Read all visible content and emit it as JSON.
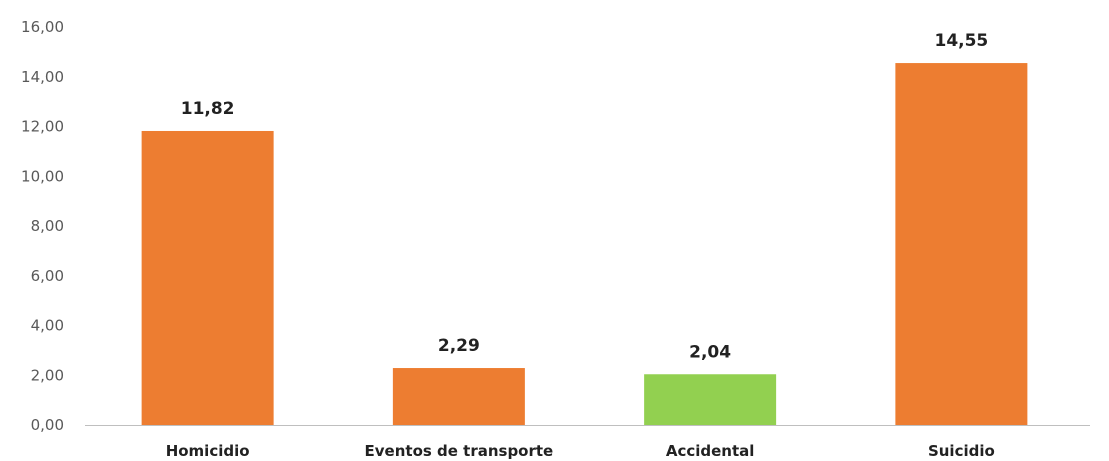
{
  "chart_data": {
    "type": "bar",
    "categories": [
      "Homicidio",
      "Eventos de transporte",
      "Accidental",
      "Suicidio"
    ],
    "values": [
      11.82,
      2.29,
      2.04,
      14.55
    ],
    "value_labels": [
      "11,82",
      "2,29",
      "2,04",
      "14,55"
    ],
    "bar_colors": [
      "#ed7d31",
      "#ed7d31",
      "#92d050",
      "#ed7d31"
    ],
    "ylim": [
      0,
      16
    ],
    "y_ticks": [
      0,
      2,
      4,
      6,
      8,
      10,
      12,
      14,
      16
    ],
    "y_tick_labels": [
      "0,00",
      "2,00",
      "4,00",
      "6,00",
      "8,00",
      "10,00",
      "12,00",
      "14,00",
      "16,00"
    ],
    "grid": false,
    "title": "",
    "xlabel": "",
    "ylabel": ""
  }
}
